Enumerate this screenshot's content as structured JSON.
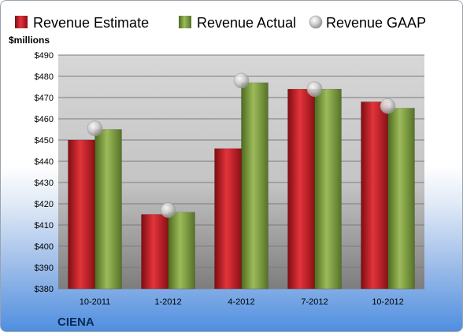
{
  "company": "CIENA",
  "chart_data": {
    "type": "bar",
    "ylabel": "$millions",
    "ylim": [
      380,
      490
    ],
    "ytick_step": 10,
    "ytick_prefix": "$",
    "grid": true,
    "legend_position": "top",
    "categories": [
      "10-2011",
      "1-2012",
      "4-2012",
      "7-2012",
      "10-2012"
    ],
    "series": [
      {
        "name": "Revenue Estimate",
        "kind": "bar",
        "color": "#d0202a",
        "values": [
          450,
          415,
          446,
          474,
          468
        ]
      },
      {
        "name": "Revenue Actual",
        "kind": "bar",
        "color": "#7a9a3c",
        "values": [
          455,
          416,
          477,
          474,
          465
        ]
      },
      {
        "name": "Revenue GAAP",
        "kind": "marker",
        "color": "#b8b8b8",
        "values": [
          455.5,
          417,
          478,
          474,
          466
        ]
      }
    ]
  }
}
